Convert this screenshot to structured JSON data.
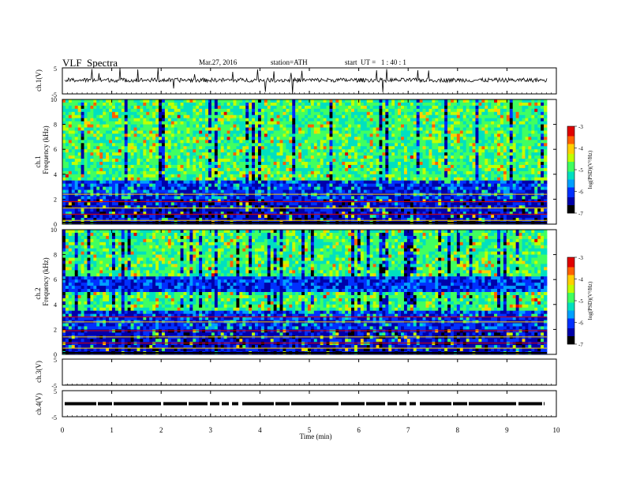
{
  "header": {
    "title": "VLF  Spectra",
    "date": "Mar.27, 2016",
    "station": "station=ATH",
    "start": "start  UT =   1 : 40 : 1"
  },
  "chart_data": [
    {
      "type": "line",
      "name": "ch.1",
      "ylabel": "ch.1(V)",
      "ylim": [
        -5,
        5
      ],
      "y_ticks": [
        "5",
        "-5"
      ],
      "trace_color": "#000000",
      "description_values": "baseline near 1 V with spiky fluctuations"
    },
    {
      "type": "heatmap",
      "name": "ch.1",
      "ylabel_top": "ch.1",
      "ylabel": "Frequency  (kHz)",
      "ylim": [
        0,
        10
      ],
      "y_ticks": [
        "0",
        "2",
        "4",
        "6",
        "8",
        "10"
      ],
      "colorbar": {
        "label": "log(PSD)(V²/Hz)",
        "range": [
          -7,
          -3
        ],
        "ticks": [
          "-3",
          "-4",
          "-5",
          "-6",
          "-7"
        ]
      }
    },
    {
      "type": "heatmap",
      "name": "ch.2",
      "ylabel_top": "ch.2",
      "ylabel": "Frequency  (kHz)",
      "ylim": [
        0,
        10
      ],
      "y_ticks": [
        "0",
        "2",
        "4",
        "6",
        "8",
        "10"
      ],
      "colorbar": {
        "label": "log(PSD)(V²/Hz)",
        "range": [
          -7,
          -3
        ],
        "ticks": [
          "-3",
          "-4",
          "-5",
          "-6",
          "-7"
        ]
      }
    },
    {
      "type": "line",
      "name": "ch.3",
      "ylabel": "ch.3(V)",
      "ylim": [
        -5,
        5
      ],
      "y_ticks": [
        "5",
        "-5"
      ],
      "trace_color": "#000000"
    },
    {
      "type": "line",
      "name": "ch.4",
      "ylabel": "ch.4(V)",
      "ylim": [
        -5,
        5
      ],
      "y_ticks": [
        "5",
        "-5"
      ],
      "trace_color": "#000000"
    }
  ],
  "x_axis": {
    "label": "Time  (min)",
    "xlim": [
      0,
      10
    ],
    "ticks": [
      "0",
      "1",
      "2",
      "3",
      "4",
      "5",
      "6",
      "7",
      "8",
      "9",
      "10"
    ]
  },
  "colormap": [
    "#000000",
    "#0000aa",
    "#0030ff",
    "#00a0ff",
    "#00e0c0",
    "#40ff60",
    "#c0ff00",
    "#ffd000",
    "#ff6000",
    "#e00000",
    "#ffffff"
  ]
}
